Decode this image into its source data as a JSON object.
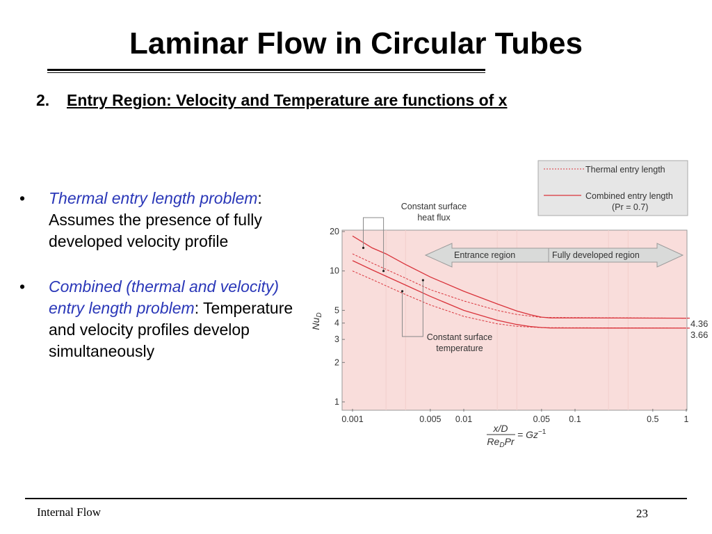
{
  "slide": {
    "title": "Laminar Flow in Circular Tubes",
    "section_number": "2.",
    "section_title": "Entry Region: Velocity and Temperature are functions of x",
    "bullets": [
      {
        "marker": "•",
        "italic": "Thermal entry length problem",
        "rest": ": Assumes the presence of fully developed velocity profile"
      },
      {
        "marker": "•",
        "italic": "Combined (thermal and velocity) entry length problem",
        "rest": ": Temperature and velocity profiles develop simultaneously"
      }
    ],
    "footer_left": "Internal Flow",
    "page_number": "23"
  },
  "chart_data": {
    "type": "line",
    "x_scale": "log",
    "y_scale": "log",
    "xlim": [
      0.001,
      1
    ],
    "ylim": [
      1,
      20
    ],
    "x_ticks": [
      {
        "value": 0.001,
        "label": "0.001"
      },
      {
        "value": 0.005,
        "label": "0.005"
      },
      {
        "value": 0.01,
        "label": "0.01"
      },
      {
        "value": 0.05,
        "label": "0.05"
      },
      {
        "value": 0.1,
        "label": "0.1"
      },
      {
        "value": 0.5,
        "label": "0.5"
      },
      {
        "value": 1,
        "label": "1"
      }
    ],
    "y_ticks": [
      {
        "value": 1,
        "label": "1"
      },
      {
        "value": 2,
        "label": "2"
      },
      {
        "value": 3,
        "label": "3"
      },
      {
        "value": 4,
        "label": "4"
      },
      {
        "value": 5,
        "label": "5"
      },
      {
        "value": 10,
        "label": "10"
      },
      {
        "value": 20,
        "label": "20"
      }
    ],
    "ylabel": "Nu_D",
    "xlabel_parts": {
      "num": "x/D",
      "den_re": "Re",
      "den_sub": "D",
      "den_pr": "Pr",
      "eq": "= Gz",
      "exp": "−1"
    },
    "legend": [
      {
        "label": "Thermal entry length",
        "style": "dashed"
      },
      {
        "label": "Combined entry length",
        "style": "solid"
      },
      {
        "label": "(Pr = 0.7)",
        "style": "none"
      }
    ],
    "region_labels": {
      "left": "Entrance region",
      "right": "Fully developed region"
    },
    "annotations": {
      "heat_flux": [
        "Constant surface",
        "heat flux"
      ],
      "temperature": [
        "Constant surface",
        "temperature"
      ]
    },
    "asymptotes": [
      {
        "value": 4.36,
        "label": "4.36"
      },
      {
        "value": 3.66,
        "label": "3.66"
      }
    ],
    "colors": {
      "curve": "#d9333b",
      "panel": "#f9dddb",
      "legend_bg": "#e6e6e6",
      "arrow": "#d9dad9",
      "bullet_italic": "#2a37b8"
    },
    "series": [
      {
        "style": "solid",
        "points": [
          [
            0.001,
            18.5
          ],
          [
            0.0015,
            15.0
          ],
          [
            0.002,
            13.5
          ],
          [
            0.003,
            11.2
          ],
          [
            0.005,
            9.0
          ],
          [
            0.01,
            7.0
          ],
          [
            0.02,
            5.6
          ],
          [
            0.03,
            4.95
          ],
          [
            0.04,
            4.62
          ],
          [
            0.05,
            4.44
          ],
          [
            0.06,
            4.38
          ],
          [
            1,
            4.36
          ]
        ]
      },
      {
        "style": "dashed",
        "points": [
          [
            0.001,
            13.5
          ],
          [
            0.0015,
            11.5
          ],
          [
            0.003,
            8.8
          ],
          [
            0.005,
            7.2
          ],
          [
            0.01,
            5.9
          ],
          [
            0.02,
            5.0
          ],
          [
            0.03,
            4.65
          ],
          [
            0.05,
            4.42
          ],
          [
            1,
            4.36
          ]
        ]
      },
      {
        "style": "solid",
        "points": [
          [
            0.001,
            12.0
          ],
          [
            0.0015,
            10.2
          ],
          [
            0.003,
            7.8
          ],
          [
            0.005,
            6.4
          ],
          [
            0.01,
            5.0
          ],
          [
            0.02,
            4.2
          ],
          [
            0.03,
            3.9
          ],
          [
            0.04,
            3.76
          ],
          [
            0.05,
            3.7
          ],
          [
            0.06,
            3.67
          ],
          [
            1,
            3.66
          ]
        ]
      },
      {
        "style": "dashed",
        "points": [
          [
            0.001,
            10.0
          ],
          [
            0.0015,
            8.6
          ],
          [
            0.003,
            6.6
          ],
          [
            0.005,
            5.5
          ],
          [
            0.01,
            4.5
          ],
          [
            0.02,
            3.95
          ],
          [
            0.03,
            3.78
          ],
          [
            0.05,
            3.69
          ],
          [
            1,
            3.66
          ]
        ]
      }
    ]
  }
}
